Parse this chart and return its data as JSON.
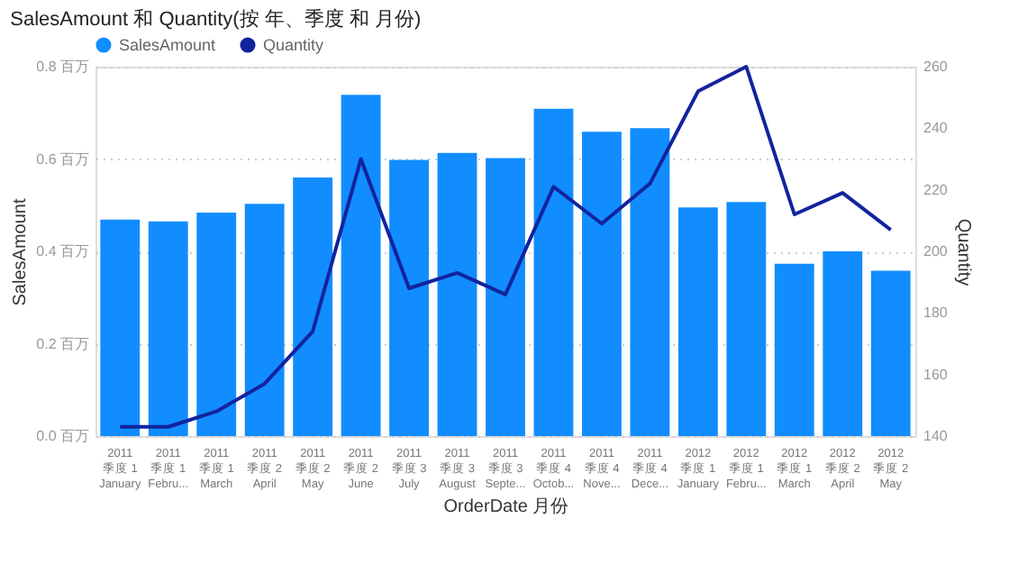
{
  "chart_data": {
    "type": "bar",
    "title": "SalesAmount 和 Quantity(按 年、季度 和 月份)",
    "xlabel": "OrderDate 月份",
    "ylabel": "SalesAmount",
    "y2label": "Quantity",
    "categories": [
      "2011\n季度 1\nJanuary",
      "2011\n季度 1\nFebru...",
      "2011\n季度 1\nMarch",
      "2011\n季度 2\nApril",
      "2011\n季度 2\nMay",
      "2011\n季度 2\nJune",
      "2011\n季度 3\nJuly",
      "2011\n季度 3\nAugust",
      "2011\n季度 3\nSepte...",
      "2011\n季度 4\nOctob...",
      "2011\n季度 4\nNove...",
      "2011\n季度 4\nDece...",
      "2012\n季度 1\nJanuary",
      "2012\n季度 1\nFebru...",
      "2012\n季度 1\nMarch",
      "2012\n季度 2\nApril",
      "2012\n季度 2\nMay"
    ],
    "series": [
      {
        "name": "SalesAmount",
        "color": "#118dff",
        "values": [
          0.469,
          0.465,
          0.484,
          0.503,
          0.56,
          0.739,
          0.598,
          0.613,
          0.602,
          0.709,
          0.659,
          0.667,
          0.495,
          0.507,
          0.373,
          0.4,
          0.358
        ]
      },
      {
        "name": "Quantity",
        "type": "line",
        "axis": "y2",
        "color": "#12239e",
        "values": [
          143,
          143,
          148,
          157,
          174,
          230,
          188,
          193,
          186,
          221,
          209,
          222,
          252,
          260,
          212,
          219,
          207
        ]
      }
    ],
    "ylim": [
      0,
      0.8
    ],
    "yticks": [
      {
        "value": 0,
        "label": "0.0 百万"
      },
      {
        "value": 0.2,
        "label": "0.2 百万"
      },
      {
        "value": 0.4,
        "label": "0.4 百万"
      },
      {
        "value": 0.6,
        "label": "0.6 百万"
      },
      {
        "value": 0.8,
        "label": "0.8 百万"
      }
    ],
    "y2lim": [
      140,
      260
    ],
    "y2ticks": [
      140,
      160,
      180,
      200,
      220,
      240,
      260
    ],
    "grid": "y",
    "legend": "top left",
    "marker": "none",
    "line_style": "solid"
  }
}
